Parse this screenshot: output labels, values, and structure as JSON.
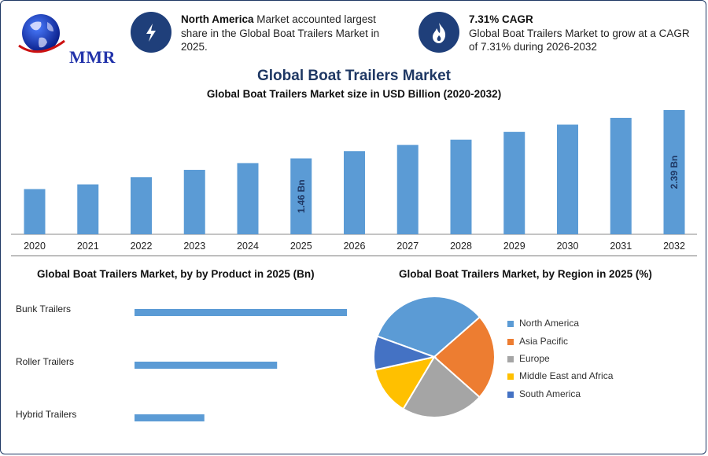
{
  "brand": {
    "logo_text": "MMR"
  },
  "highlights": [
    {
      "icon": "lightning-icon",
      "bold": "North America",
      "text": " Market accounted largest share in the Global Boat Trailers Market in 2025."
    },
    {
      "icon": "flame-icon",
      "bold": "7.31% CAGR",
      "text": "Global Boat Trailers Market to grow at a CAGR of 7.31% during 2026-2032"
    }
  ],
  "header": {
    "title": "Global Boat Trailers Market",
    "subtitle": "Global Boat Trailers Market size in USD Billion (2020-2032)"
  },
  "colors": {
    "bar": "#5b9bd5",
    "navy": "#1f3864",
    "bar_label": "#1f3864"
  },
  "chart_data": [
    {
      "type": "bar",
      "title": "Global Boat Trailers Market size in USD Billion (2020-2032)",
      "categories": [
        "2020",
        "2021",
        "2022",
        "2023",
        "2024",
        "2025",
        "2026",
        "2027",
        "2028",
        "2029",
        "2030",
        "2031",
        "2032"
      ],
      "values": [
        0.87,
        0.96,
        1.1,
        1.24,
        1.37,
        1.46,
        1.6,
        1.72,
        1.82,
        1.97,
        2.11,
        2.24,
        2.39
      ],
      "data_labels": {
        "5": "1.46 Bn",
        "12": "2.39 Bn"
      },
      "xlabel": "",
      "ylabel": "",
      "ylim": [
        0,
        2.5
      ]
    },
    {
      "type": "bar",
      "orientation": "horizontal",
      "title": "Global Boat Trailers Market, by by Product in 2025 (Bn)",
      "categories": [
        "Bunk Trailers",
        "Roller Trailers",
        "Hybrid Trailers"
      ],
      "values": [
        0.73,
        0.49,
        0.24
      ],
      "xlim": [
        0,
        0.8
      ]
    },
    {
      "type": "pie",
      "title": "Global Boat Trailers Market, by Region in 2025 (%)",
      "categories": [
        "North America",
        "Asia Pacific",
        "Europe",
        "Middle East and Africa",
        "South America"
      ],
      "values": [
        33,
        23,
        22,
        13,
        9
      ],
      "colors": [
        "#5b9bd5",
        "#ed7d31",
        "#a5a5a5",
        "#ffc000",
        "#4472c4"
      ],
      "legend_position": "right"
    }
  ]
}
